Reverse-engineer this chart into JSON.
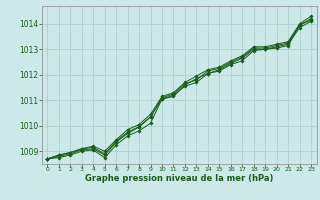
{
  "title": "Graphe pression niveau de la mer (hPa)",
  "bg_color": "#cce8e8",
  "grid_color": "#b8d8d8",
  "line_color": "#1a5c1a",
  "marker_color": "#1a5c1a",
  "label_color": "#1a5c1a",
  "xlim": [
    -0.5,
    23.5
  ],
  "ylim": [
    1008.5,
    1014.7
  ],
  "yticks": [
    1009,
    1010,
    1011,
    1012,
    1013,
    1014
  ],
  "xticks": [
    0,
    1,
    2,
    3,
    4,
    5,
    6,
    7,
    8,
    9,
    10,
    11,
    12,
    13,
    14,
    15,
    16,
    17,
    18,
    19,
    20,
    21,
    22,
    23
  ],
  "series": [
    [
      1008.7,
      1008.75,
      1008.85,
      1009.0,
      1009.05,
      1008.75,
      1009.25,
      1009.6,
      1009.8,
      1010.1,
      1011.05,
      1011.15,
      1011.6,
      1011.85,
      1012.05,
      1012.15,
      1012.4,
      1012.55,
      1012.95,
      1013.0,
      1013.05,
      1013.15,
      1013.95,
      1014.2
    ],
    [
      1008.7,
      1008.8,
      1008.9,
      1009.05,
      1009.1,
      1008.85,
      1009.35,
      1009.7,
      1009.95,
      1010.35,
      1011.05,
      1011.2,
      1011.55,
      1011.7,
      1012.05,
      1012.2,
      1012.45,
      1012.65,
      1013.0,
      1013.0,
      1013.1,
      1013.2,
      1013.85,
      1014.1
    ],
    [
      1008.7,
      1008.85,
      1008.95,
      1009.1,
      1009.15,
      1008.9,
      1009.4,
      1009.75,
      1009.97,
      1010.35,
      1011.1,
      1011.25,
      1011.65,
      1011.8,
      1012.15,
      1012.25,
      1012.5,
      1012.7,
      1013.05,
      1013.05,
      1013.15,
      1013.25,
      1013.95,
      1014.15
    ],
    [
      1008.7,
      1008.85,
      1008.95,
      1009.1,
      1009.2,
      1009.0,
      1009.45,
      1009.85,
      1010.05,
      1010.45,
      1011.15,
      1011.3,
      1011.7,
      1011.95,
      1012.2,
      1012.3,
      1012.55,
      1012.75,
      1013.1,
      1013.1,
      1013.2,
      1013.3,
      1014.0,
      1014.3
    ]
  ]
}
